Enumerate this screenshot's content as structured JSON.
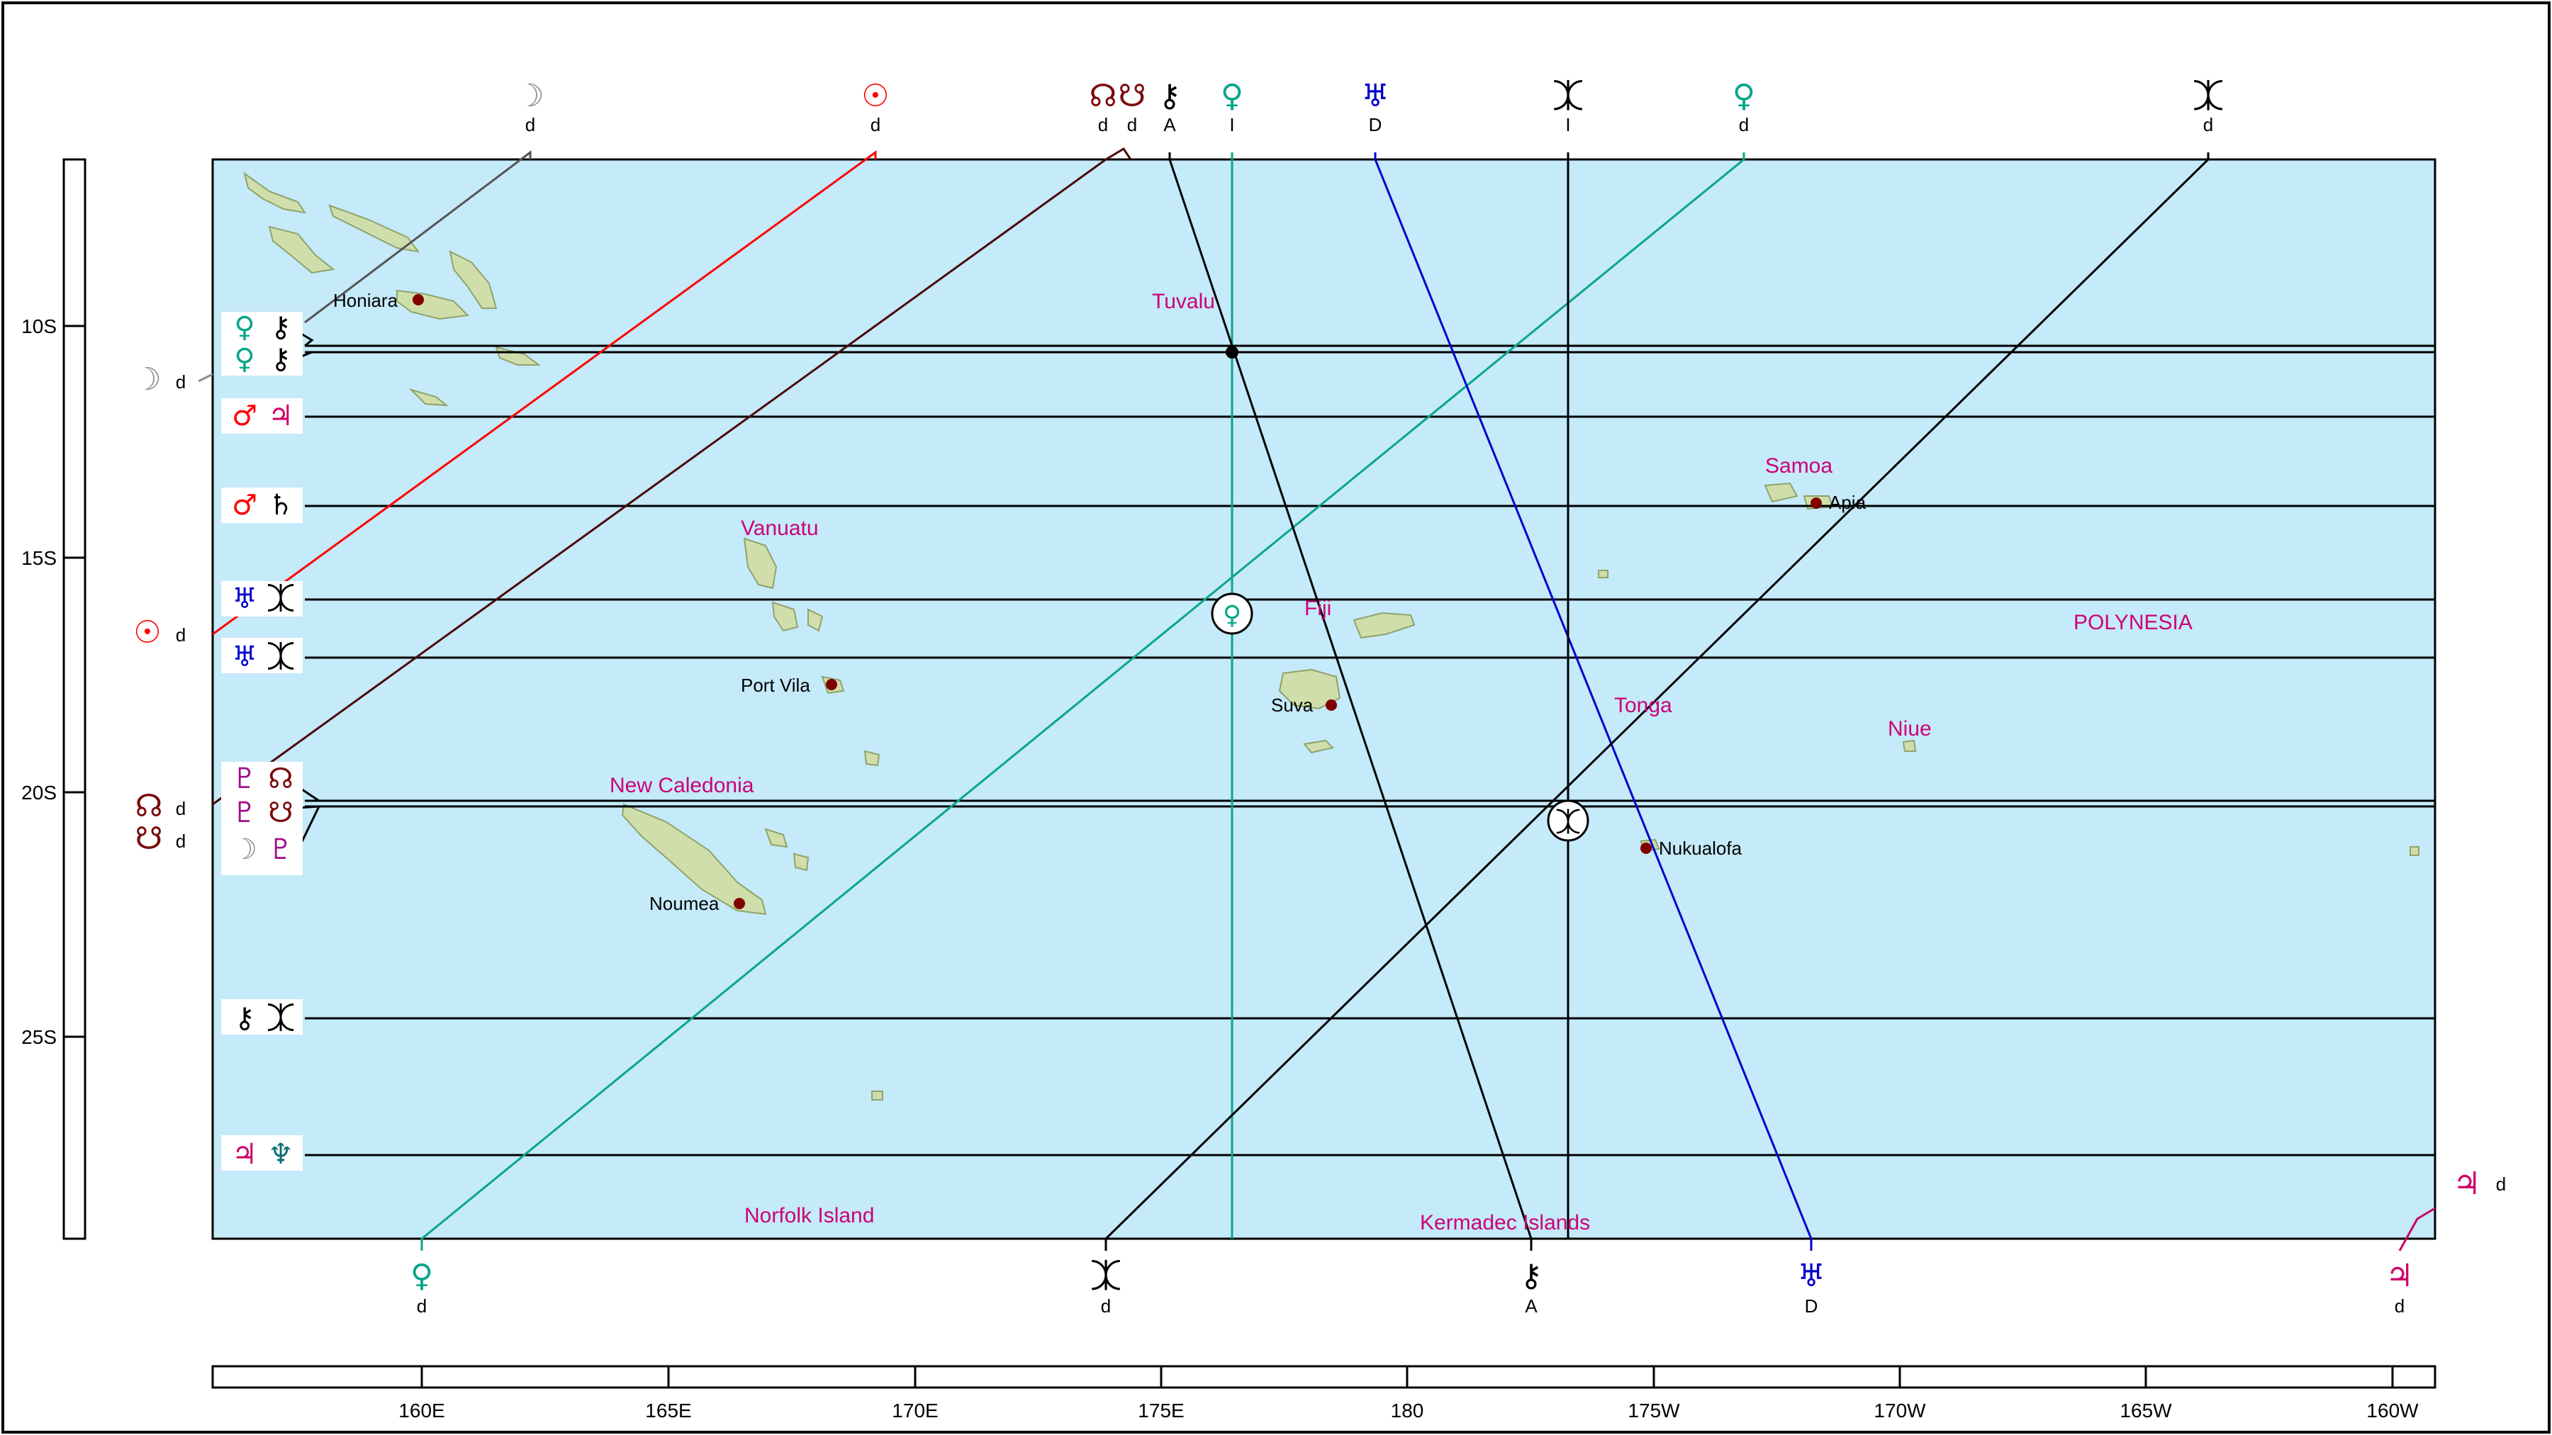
{
  "lat_labels": [
    "10S",
    "15S",
    "20S",
    "25S"
  ],
  "lon_labels": [
    "160E",
    "165E",
    "170E",
    "175E",
    "180",
    "175W",
    "170W",
    "165W",
    "160W"
  ],
  "places": {
    "honiara": "Honiara",
    "tuvalu": "Tuvalu",
    "vanuatu": "Vanuatu",
    "fiji": "Fiji",
    "samoa": "Samoa",
    "apia": "Apia",
    "polynesia": "POLYNESIA",
    "port_vila": "Port Vila",
    "suva": "Suva",
    "tonga": "Tonga",
    "niue": "Niue",
    "new_caledonia": "New Caledonia",
    "nukualofa": "Nukualofa",
    "noumea": "Noumea",
    "norfolk": "Norfolk Island",
    "kermadec": "Kermadec Islands"
  },
  "glyphs": {
    "sun": "☉",
    "moon": "☽",
    "node_n": "☊",
    "node_s": "☋",
    "chiron": "⚷",
    "venus": "♀",
    "uranus": "♅",
    "pluto": "♇",
    "eris": "⯰",
    "mars": "♂",
    "jupiter": "♃",
    "saturn": "♄",
    "neptune": "♆"
  },
  "angle_codes": {
    "d": "d",
    "a": "A",
    "i": "I",
    "D": "D"
  },
  "colors": {
    "ocean": "#c5eaf9",
    "land": "#cfdeab",
    "land_edge": "#8fa36a",
    "moon": "#8e8e8e",
    "sun": "#ff0000",
    "node": "#7b0a0a",
    "venus": "#0aa58a",
    "uranus": "#0000cc",
    "pluto": "#a0108a",
    "mars": "#ff0000",
    "jupiter": "#cc0066",
    "neptune": "#0a6e6e",
    "label_magenta": "#cc0077",
    "city_dot": "#800000",
    "chiron": "#000000"
  }
}
